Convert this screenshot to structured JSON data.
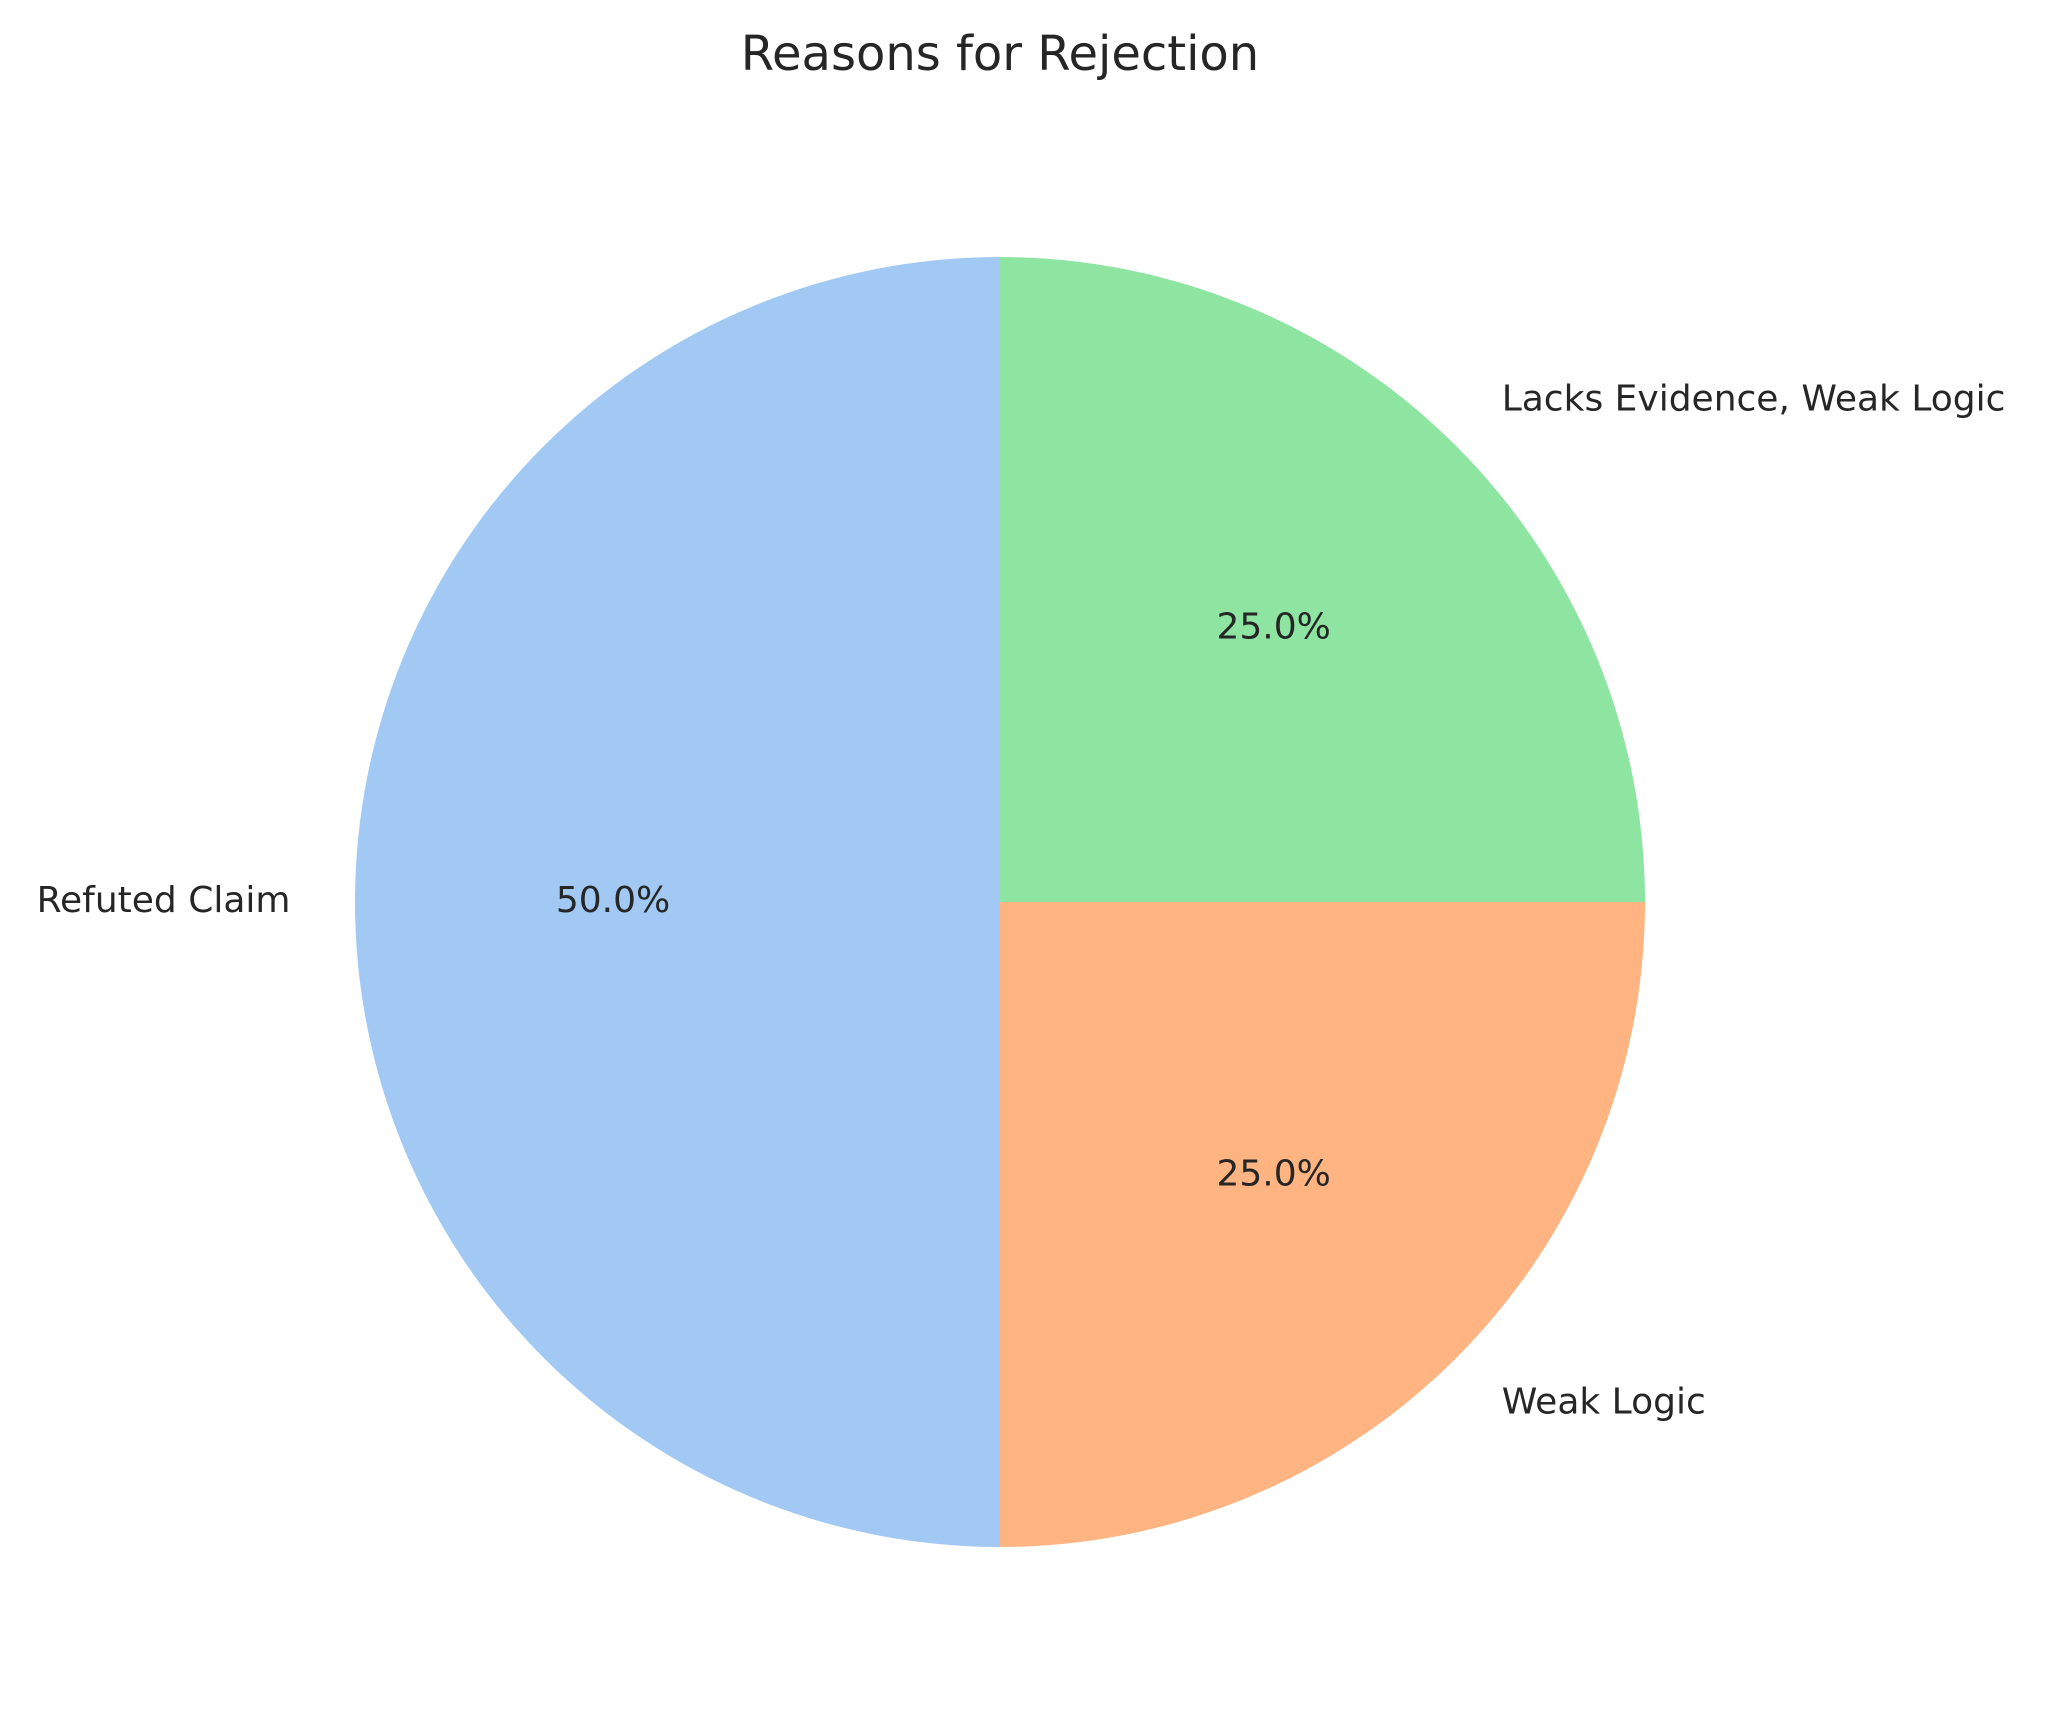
{
  "chart_data": {
    "type": "pie",
    "title": "Reasons for Rejection",
    "categories": [
      "Refuted Claim",
      "Weak Logic",
      "Lacks Evidence, Weak Logic"
    ],
    "values": [
      50.0,
      25.0,
      25.0
    ],
    "percent_labels": [
      "50.0%",
      "25.0%",
      "25.0%"
    ],
    "colors": [
      "#a1c9f4",
      "#ffb482",
      "#8de5a1"
    ],
    "start_angle_deg": 90,
    "direction": "counterclockwise"
  }
}
